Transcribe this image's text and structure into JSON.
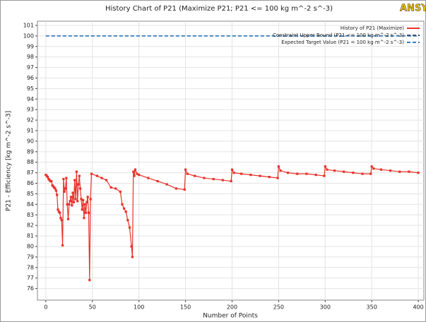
{
  "chart_data": {
    "type": "line",
    "title": "History Chart of P21 (Maximize P21; P21 <= 100 kg m^-2 s^-3)",
    "logo": "ANSYS",
    "x_label": "Number of Points",
    "y_label": "P21 - Efficiency  [kg m^-2 s^-3]",
    "xlim": [
      -9,
      406
    ],
    "ylim": [
      74.9,
      101.4
    ],
    "xticks": [
      0,
      50,
      100,
      150,
      200,
      250,
      300,
      350,
      400
    ],
    "yticks": [
      76,
      77,
      78,
      79,
      80,
      81,
      82,
      83,
      84,
      85,
      86,
      87,
      88,
      89,
      90,
      91,
      92,
      93,
      94,
      95,
      96,
      97,
      98,
      99,
      100,
      101
    ],
    "grid": true,
    "legend": "top-right",
    "series": [
      {
        "name": "History of P21 (Maximize)",
        "color": "#e8332a",
        "style": "solid",
        "markers": true,
        "x": [
          0,
          1,
          2,
          3,
          4,
          5,
          6,
          7,
          8,
          9,
          10,
          11,
          12,
          13,
          14,
          15,
          16,
          17,
          18,
          19,
          20,
          21,
          22,
          23,
          24,
          25,
          26,
          27,
          28,
          29,
          30,
          31,
          32,
          33,
          34,
          35,
          36,
          37,
          38,
          39,
          40,
          41,
          42,
          43,
          44,
          45,
          46,
          47,
          48,
          49,
          55,
          60,
          65,
          70,
          75,
          80,
          82,
          84,
          86,
          88,
          90,
          92,
          93,
          94,
          95,
          96,
          98,
          100,
          110,
          120,
          130,
          140,
          149,
          150,
          152,
          160,
          170,
          180,
          190,
          199,
          200,
          202,
          210,
          220,
          230,
          240,
          249,
          250,
          252,
          260,
          270,
          280,
          290,
          299,
          300,
          302,
          310,
          320,
          330,
          340,
          349,
          350,
          352,
          360,
          370,
          380,
          390,
          400
        ],
        "values": [
          86.8,
          86.7,
          86.6,
          86.4,
          86.3,
          86.2,
          86.2,
          85.8,
          85.7,
          85.6,
          85.5,
          85.3,
          84.9,
          83.5,
          83.3,
          83.2,
          82.7,
          82.5,
          80.1,
          86.4,
          85.2,
          85.5,
          86.5,
          84.0,
          82.6,
          84.0,
          84.3,
          84.7,
          83.9,
          85.1,
          84.2,
          86.3,
          84.5,
          87.1,
          84.3,
          85.9,
          86.7,
          85.5,
          84.5,
          83.5,
          84.4,
          82.7,
          84.0,
          83.2,
          84.2,
          84.7,
          83.2,
          76.8,
          84.5,
          86.9,
          86.7,
          86.5,
          86.3,
          85.6,
          85.5,
          85.2,
          84.0,
          83.6,
          83.3,
          82.5,
          81.8,
          80.0,
          79.0,
          87.1,
          86.7,
          87.3,
          86.9,
          86.8,
          86.5,
          86.2,
          85.9,
          85.5,
          85.4,
          87.3,
          86.9,
          86.7,
          86.5,
          86.4,
          86.3,
          86.2,
          87.3,
          87.0,
          86.9,
          86.8,
          86.7,
          86.6,
          86.5,
          87.6,
          87.2,
          87.0,
          86.9,
          86.9,
          86.8,
          86.7,
          87.6,
          87.3,
          87.2,
          87.1,
          87.0,
          86.9,
          86.9,
          87.6,
          87.4,
          87.3,
          87.2,
          87.1,
          87.1,
          87.0
        ]
      },
      {
        "name": "Constraint Upper Bound (P21 <= 100 kg m^-2 s^-3)",
        "color": "#3a4f7a",
        "style": "dashed",
        "markers": false,
        "x": [
          0,
          400
        ],
        "values": [
          100,
          100
        ]
      },
      {
        "name": "Expected Target Value (P21 = 100 kg m^-2 s^-3)",
        "color": "#2f7fc1",
        "style": "dashed",
        "markers": false,
        "x": [
          0,
          400
        ],
        "values": [
          100,
          100
        ]
      }
    ]
  }
}
